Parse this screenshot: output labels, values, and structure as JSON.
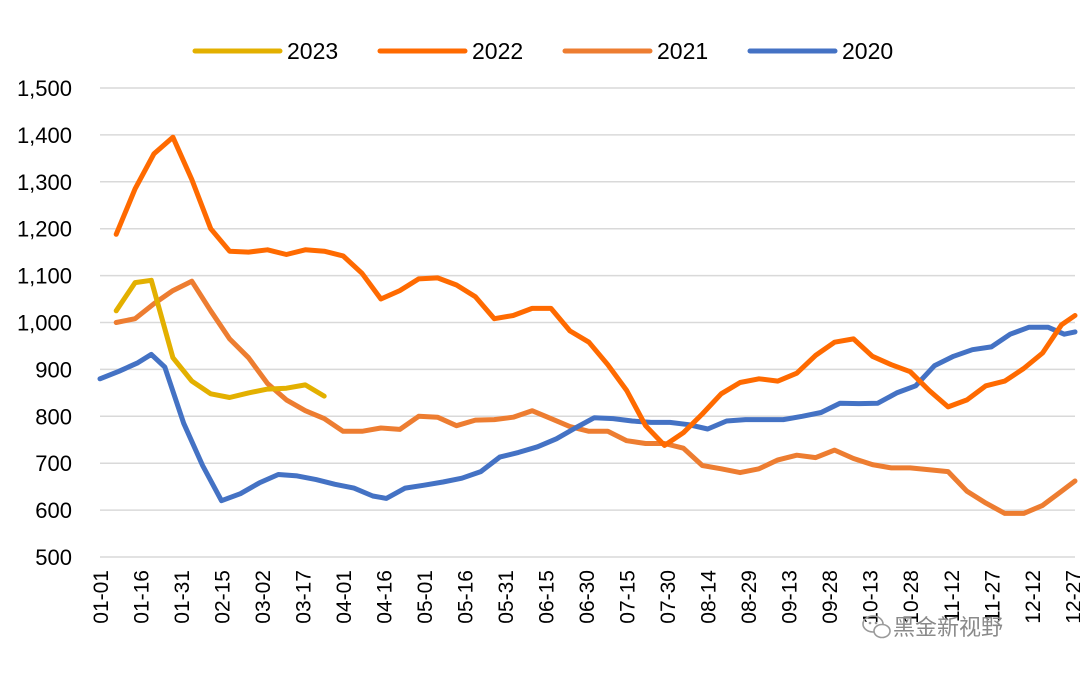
{
  "chart_data": {
    "type": "line",
    "title": "",
    "xlabel": "",
    "ylabel": "",
    "ylim": [
      500,
      1500
    ],
    "yticks": [
      500,
      600,
      700,
      800,
      900,
      1000,
      1100,
      1200,
      1300,
      1400,
      1500
    ],
    "ytick_labels": [
      "500",
      "600",
      "700",
      "800",
      "900",
      "1,000",
      "1,100",
      "1,200",
      "1,300",
      "1,400",
      "1,500"
    ],
    "x_range": [
      0,
      361
    ],
    "x_tick_labels": [
      "01-01",
      "01-16",
      "01-31",
      "02-15",
      "03-02",
      "03-17",
      "04-01",
      "04-16",
      "05-01",
      "05-16",
      "05-31",
      "06-15",
      "06-30",
      "07-15",
      "07-30",
      "08-14",
      "08-29",
      "09-13",
      "09-28",
      "10-13",
      "10-28",
      "11-12",
      "11-27",
      "12-12",
      "12-27"
    ],
    "x_tick_days": [
      0,
      15,
      30,
      45,
      60,
      75,
      90,
      105,
      120,
      135,
      150,
      165,
      180,
      195,
      210,
      225,
      240,
      255,
      270,
      285,
      300,
      315,
      330,
      345,
      360
    ],
    "grid": true,
    "legend_position": "top-center",
    "series": [
      {
        "name": "2023",
        "color": "#E3B000",
        "x": [
          6,
          13,
          19,
          27,
          34,
          41,
          48,
          55,
          62,
          69,
          76,
          83
        ],
        "y": [
          1025,
          1085,
          1090,
          925,
          875,
          848,
          840,
          850,
          858,
          860,
          867,
          843
        ]
      },
      {
        "name": "2022",
        "color": "#FF6A00",
        "x": [
          6,
          13,
          20,
          27,
          34,
          41,
          48,
          55,
          62,
          69,
          76,
          83,
          90,
          97,
          104,
          111,
          118,
          125,
          132,
          139,
          146,
          153,
          160,
          167,
          174,
          181,
          188,
          195,
          202,
          209,
          216,
          223,
          230,
          237,
          244,
          251,
          258,
          265,
          272,
          279,
          286,
          293,
          300,
          307,
          314,
          321,
          328,
          335,
          342,
          349,
          356,
          361
        ],
        "y": [
          1188,
          1285,
          1360,
          1395,
          1305,
          1200,
          1152,
          1150,
          1155,
          1145,
          1155,
          1152,
          1142,
          1105,
          1050,
          1068,
          1093,
          1095,
          1080,
          1055,
          1008,
          1015,
          1030,
          1030,
          982,
          958,
          910,
          855,
          780,
          738,
          765,
          805,
          848,
          872,
          880,
          875,
          892,
          930,
          958,
          965,
          928,
          910,
          895,
          855,
          820,
          835,
          865,
          875,
          902,
          935,
          995,
          1015
        ]
      },
      {
        "name": "2021",
        "color": "#ED7D31",
        "x": [
          6,
          13,
          20,
          27,
          34,
          41,
          48,
          55,
          62,
          69,
          76,
          83,
          90,
          97,
          104,
          111,
          118,
          125,
          132,
          139,
          146,
          153,
          160,
          167,
          174,
          181,
          188,
          195,
          202,
          209,
          216,
          223,
          230,
          237,
          244,
          251,
          258,
          265,
          272,
          279,
          286,
          293,
          300,
          307,
          314,
          321,
          328,
          335,
          342,
          349,
          356,
          361
        ],
        "y": [
          1000,
          1008,
          1040,
          1068,
          1088,
          1025,
          965,
          925,
          870,
          835,
          812,
          795,
          768,
          768,
          775,
          772,
          800,
          798,
          780,
          792,
          793,
          798,
          812,
          795,
          778,
          768,
          768,
          748,
          742,
          742,
          732,
          695,
          688,
          680,
          688,
          707,
          717,
          712,
          728,
          710,
          697,
          690,
          690,
          686,
          682,
          640,
          615,
          593,
          593,
          610,
          640,
          662
        ]
      },
      {
        "name": "2020",
        "color": "#4472C4",
        "x": [
          0,
          7,
          14,
          19,
          24,
          31,
          38,
          45,
          52,
          59,
          66,
          73,
          80,
          87,
          94,
          101,
          106,
          113,
          120,
          127,
          134,
          141,
          148,
          155,
          162,
          169,
          176,
          183,
          190,
          197,
          204,
          211,
          218,
          225,
          232,
          239,
          246,
          253,
          260,
          267,
          274,
          281,
          288,
          295,
          302,
          309,
          316,
          323,
          330,
          337,
          344,
          351,
          357,
          361
        ],
        "y": [
          880,
          896,
          914,
          932,
          905,
          785,
          695,
          620,
          635,
          658,
          676,
          673,
          665,
          655,
          647,
          630,
          625,
          647,
          653,
          660,
          668,
          682,
          713,
          723,
          735,
          752,
          775,
          797,
          795,
          790,
          787,
          787,
          782,
          773,
          790,
          793,
          793,
          793,
          800,
          808,
          828,
          827,
          828,
          850,
          865,
          908,
          928,
          942,
          948,
          975,
          990,
          990,
          975,
          980
        ]
      }
    ]
  },
  "watermark": {
    "text": "黑金新视野",
    "icon": "wechat-icon"
  }
}
